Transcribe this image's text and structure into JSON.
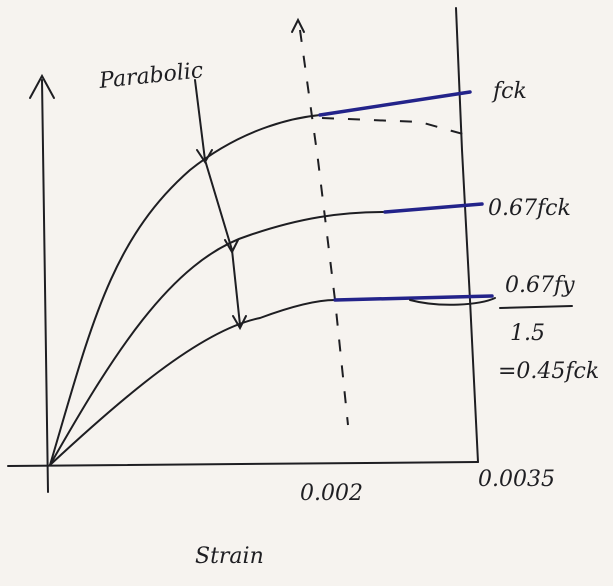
{
  "diagram": {
    "curve_label": "Parabolic",
    "levels": [
      "fck",
      "0.67fck",
      "0.67fy",
      "1.5",
      "=0.45fck"
    ],
    "x_marks": [
      "0.002",
      "0.0035"
    ],
    "x_axis_label": "Strain"
  }
}
